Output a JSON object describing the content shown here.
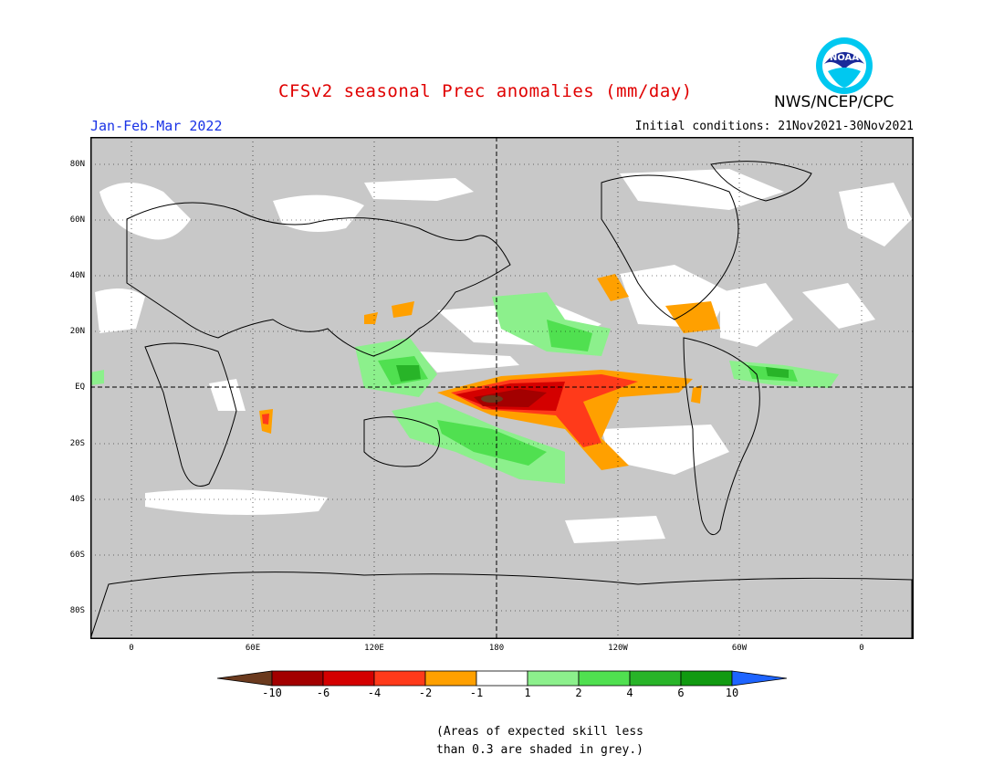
{
  "header": {
    "title": "CFSv2 seasonal Prec anomalies (mm/day)",
    "agency": "NWS/NCEP/CPC",
    "logo_text": "NOAA",
    "season": "Jan-Feb-Mar 2022",
    "initial_conditions": "Initial conditions: 21Nov2021-30Nov2021"
  },
  "map": {
    "projection": "equirectangular",
    "reference_lines": [
      "EQ",
      "180"
    ],
    "lat_labels": [
      "80N",
      "60N",
      "40N",
      "20N",
      "EQ",
      "20S",
      "40S",
      "60S",
      "80S"
    ],
    "lon_labels": [
      "0",
      "60E",
      "120E",
      "180",
      "120W",
      "60W",
      "0"
    ],
    "land_lines": "black coastlines",
    "background_note": "grey = low skill"
  },
  "colorbar": {
    "labels": [
      "-10",
      "-6",
      "-4",
      "-2",
      "-1",
      "1",
      "2",
      "4",
      "6",
      "10"
    ],
    "colors": [
      "#6b3a1e",
      "#a30000",
      "#d40000",
      "#ff3a1a",
      "#ffa000",
      "#ffffff",
      "#8cf08c",
      "#50e050",
      "#28b428",
      "#119a11",
      "#1e64ff"
    ]
  },
  "note": {
    "line1": "(Areas of expected skill less",
    "line2": "than 0.3 are shaded in grey.)"
  },
  "colors": {
    "skill_grey": "#c8c8c8",
    "title_red": "#e00000",
    "season_blue": "#1a33e6"
  }
}
